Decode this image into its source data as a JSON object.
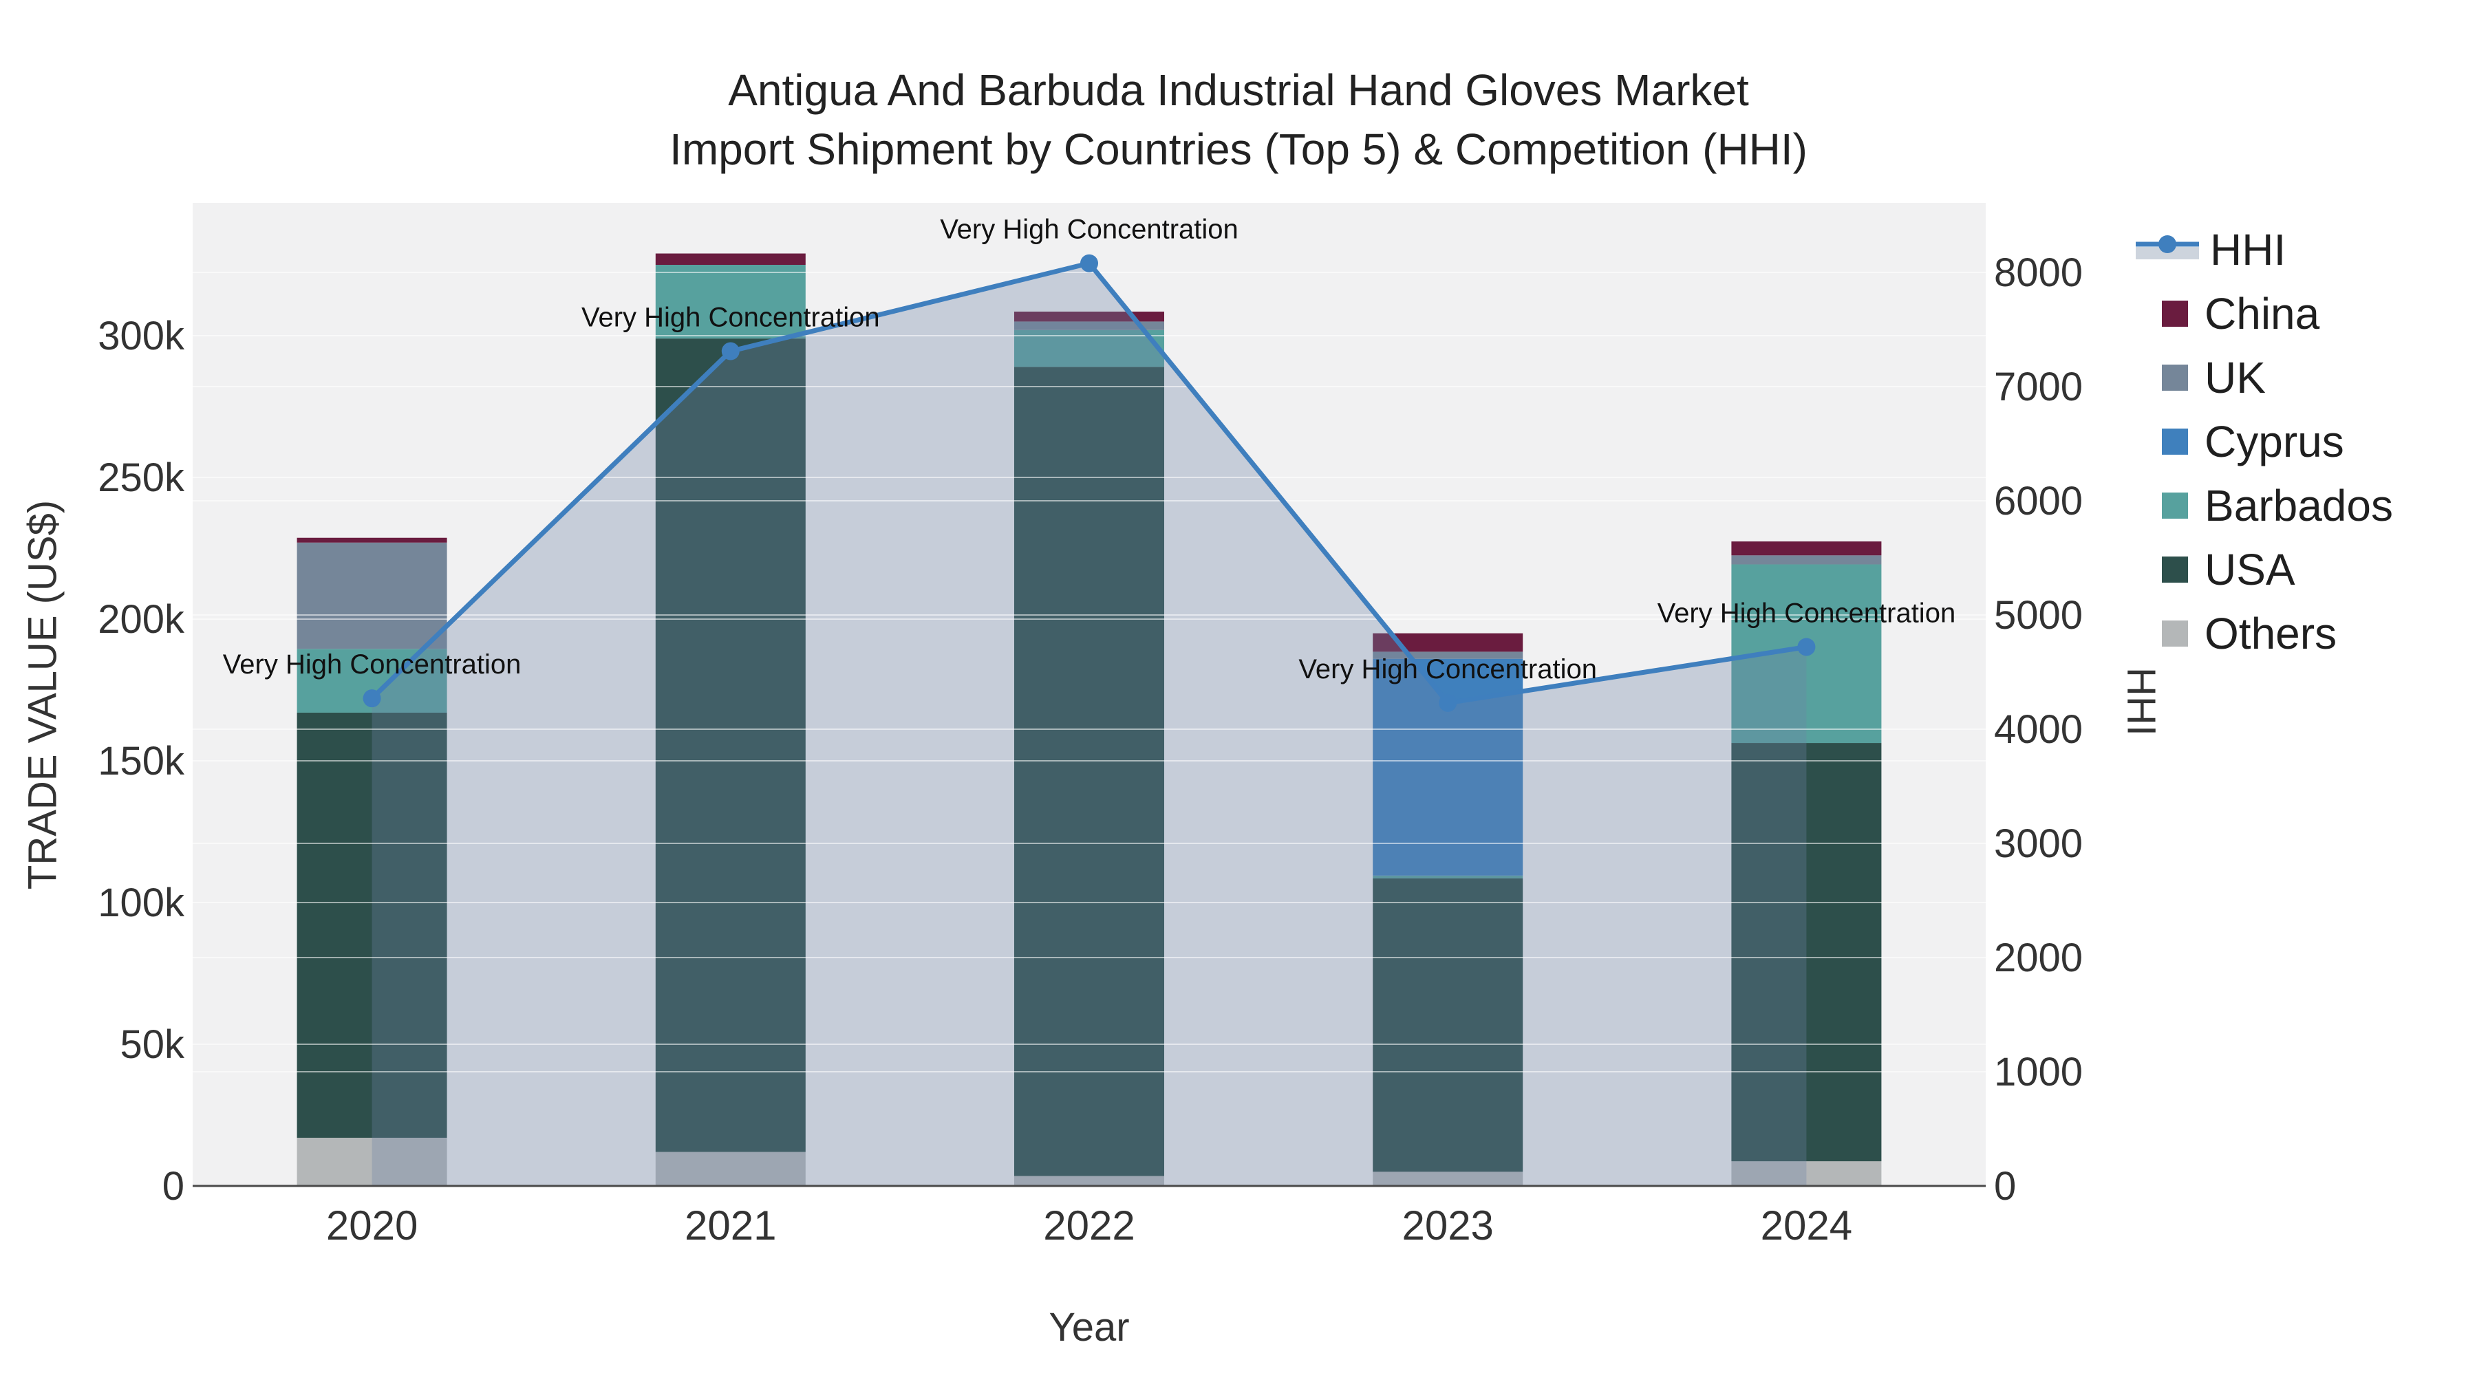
{
  "title": {
    "line1": "Antigua And Barbuda Industrial Hand Gloves Market",
    "line2": "Import Shipment by Countries (Top 5) & Competition (HHI)"
  },
  "chart_data": {
    "type": "bar",
    "stacked": true,
    "x": [
      2020,
      2021,
      2022,
      2023,
      2024
    ],
    "xlabel": "Year",
    "y_left": {
      "label": "TRADE VALUE (US$)",
      "tick_values": [
        0,
        50000,
        100000,
        150000,
        200000,
        250000,
        300000
      ],
      "tick_labels": [
        "0",
        "50k",
        "100k",
        "150k",
        "200k",
        "250k",
        "300k"
      ],
      "range": [
        0,
        347000
      ]
    },
    "y_right": {
      "label": "HHI",
      "tick_values": [
        0,
        1000,
        2000,
        3000,
        4000,
        5000,
        6000,
        7000,
        8000
      ],
      "tick_labels": [
        "0",
        "1000",
        "2000",
        "3000",
        "4000",
        "5000",
        "6000",
        "7000",
        "8000"
      ],
      "range": [
        0,
        8600
      ]
    },
    "bar_series": [
      {
        "name": "Others",
        "color": "#b4b7b8",
        "values": [
          17000,
          12000,
          3500,
          5000,
          8700
        ]
      },
      {
        "name": "USA",
        "color": "#2d4f4b",
        "values": [
          150000,
          287000,
          285500,
          103500,
          147600
        ]
      },
      {
        "name": "Barbados",
        "color": "#57a19e",
        "values": [
          22500,
          26000,
          13000,
          1000,
          63000
        ]
      },
      {
        "name": "Cyprus",
        "color": "#3f80bd",
        "values": [
          0,
          0,
          0,
          76500,
          0
        ]
      },
      {
        "name": "UK",
        "color": "#758699",
        "values": [
          37500,
          0,
          3000,
          2500,
          3200
        ]
      },
      {
        "name": "China",
        "color": "#6a1c3f",
        "values": [
          1700,
          4000,
          3500,
          6500,
          4900
        ]
      }
    ],
    "bar_totals": [
      228700,
      329000,
      308500,
      195000,
      227400
    ],
    "line_series": {
      "name": "HHI",
      "color": "#3f7fbe",
      "marker_color": "#3f7fbe",
      "area_color": "rgba(110,132,164,0.32)",
      "values": [
        4270,
        7310,
        8080,
        4230,
        4720
      ]
    },
    "annotation_label": "Very High Concentration",
    "legend_order": [
      "HHI",
      "China",
      "UK",
      "Cyprus",
      "Barbados",
      "USA",
      "Others"
    ],
    "grid": true,
    "legend_position": "top-right",
    "plot_background": "#f1f1f2",
    "axis_line_color": "#4a4a4a",
    "text_color": "#333333"
  }
}
